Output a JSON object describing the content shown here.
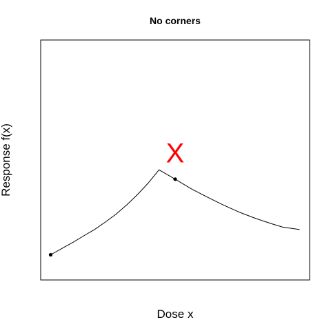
{
  "chart_data": {
    "type": "line",
    "title": "No corners",
    "xlabel": "Dose x",
    "ylabel": "Response f(x)",
    "xlim": [
      0,
      1
    ],
    "ylim": [
      0,
      1
    ],
    "grid": false,
    "axes_ticks": false,
    "series": [
      {
        "values_x": [
          0.037,
          0.08,
          0.12,
          0.16,
          0.2,
          0.24,
          0.28,
          0.32,
          0.36,
          0.4,
          0.44,
          0.5,
          0.56,
          0.62,
          0.68,
          0.74,
          0.8,
          0.86,
          0.9,
          0.963
        ],
        "values_y": [
          0.105,
          0.132,
          0.157,
          0.184,
          0.21,
          0.241,
          0.274,
          0.313,
          0.356,
          0.404,
          0.459,
          0.42,
          0.38,
          0.345,
          0.312,
          0.282,
          0.256,
          0.234,
          0.22,
          0.21
        ],
        "color": "#000000"
      }
    ],
    "points": [
      {
        "x": 0.037,
        "y": 0.105
      },
      {
        "x": 0.5,
        "y": 0.42
      }
    ],
    "annotations": [
      {
        "text": "X",
        "x": 0.5,
        "y": 0.49,
        "color": "#ff0000"
      }
    ]
  }
}
